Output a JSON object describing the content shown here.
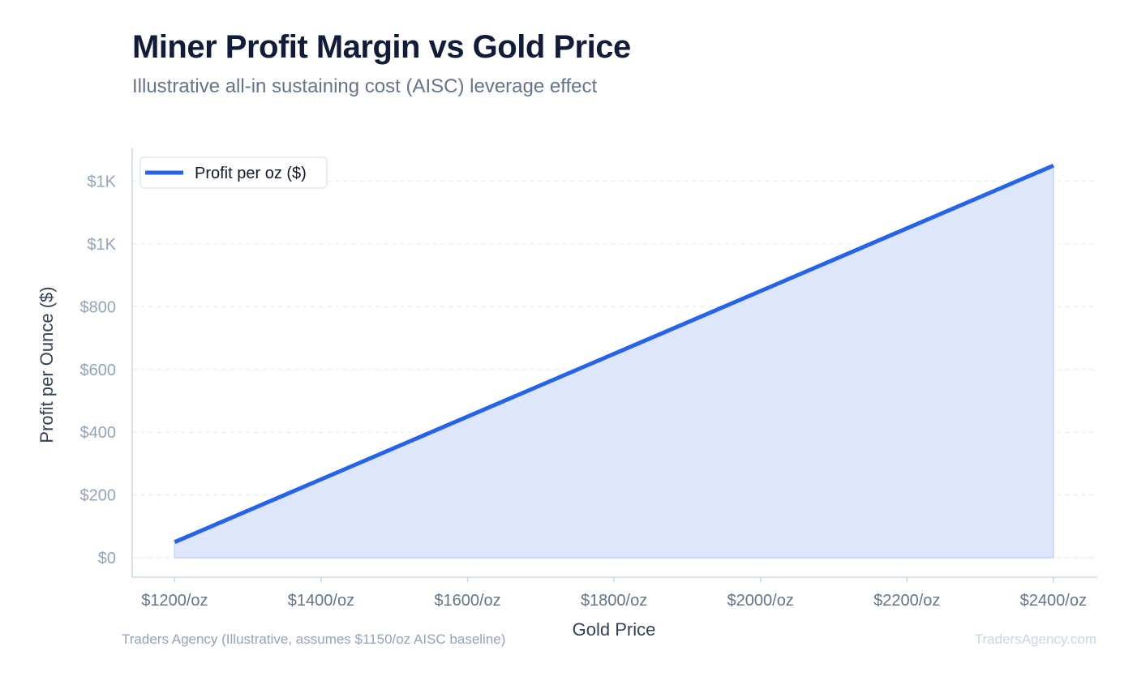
{
  "header": {
    "title": "Miner Profit Margin vs Gold Price",
    "subtitle": "Illustrative all-in sustaining cost (AISC) leverage effect"
  },
  "footer": {
    "source": "Traders Agency (Illustrative, assumes $1150/oz AISC baseline)",
    "brand": "TradersAgency.com"
  },
  "colors": {
    "line": "#2563eb",
    "area_fill": "#dde6fb",
    "area_edge": "#c5d3f4",
    "grid": "#e5e7eb",
    "axis": "#cbd5e1"
  },
  "chart_data": {
    "type": "area",
    "title": "Miner Profit Margin vs Gold Price",
    "subtitle": "Illustrative all-in sustaining cost (AISC) leverage effect",
    "xlabel": "Gold Price",
    "ylabel": "Profit per Ounce ($)",
    "x": [
      1200,
      2400
    ],
    "x_tick_values": [
      1200,
      1400,
      1600,
      1800,
      2000,
      2200,
      2400
    ],
    "x_tick_labels": [
      "$1200/oz",
      "$1400/oz",
      "$1600/oz",
      "$1800/oz",
      "$2000/oz",
      "$2200/oz",
      "$2400/oz"
    ],
    "xlim": [
      1142,
      2460
    ],
    "ylim": [
      -62,
      1305
    ],
    "y_tick_values": [
      0,
      200,
      400,
      600,
      800,
      1000,
      1200
    ],
    "y_tick_labels": [
      "$0",
      "$200",
      "$400",
      "$600",
      "$800",
      "$1K",
      "$1K"
    ],
    "series": [
      {
        "name": "Profit per oz ($)",
        "x": [
          1200,
          2400
        ],
        "values": [
          50,
          1250
        ]
      }
    ],
    "grid": true,
    "legend_position": "top-left"
  }
}
